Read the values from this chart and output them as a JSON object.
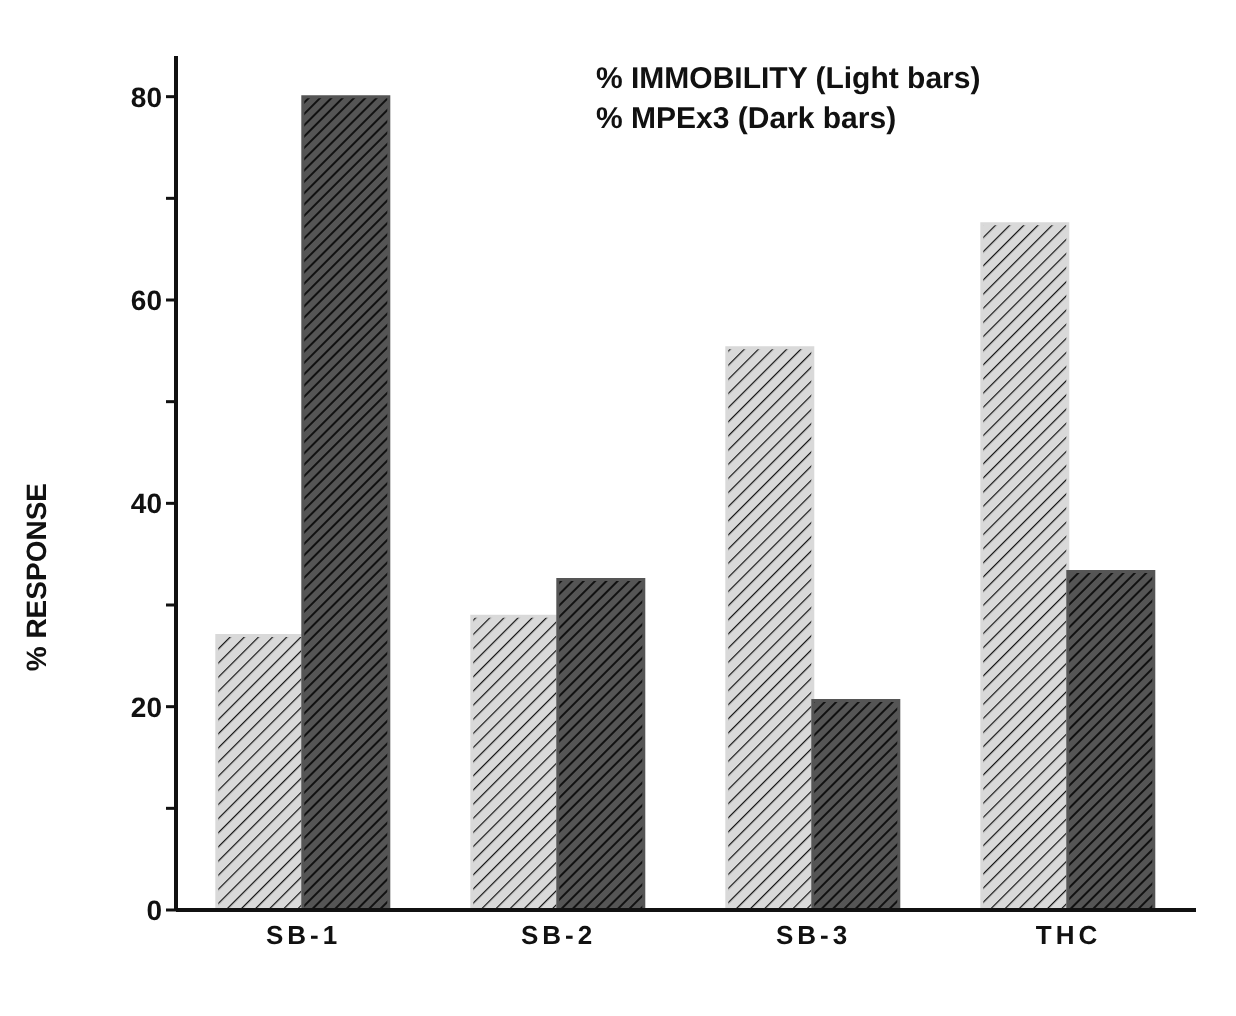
{
  "chart_data": {
    "type": "bar",
    "ylabel": "% RESPONSE",
    "categories": [
      "SB-1",
      "SB-2",
      "SB-3",
      "THC"
    ],
    "series": [
      {
        "color": "#d9d9d9",
        "values": [
          27,
          28.9,
          55.3,
          67.5
        ]
      },
      {
        "color": "#555555",
        "values": [
          80,
          32.5,
          20.6,
          33.3
        ]
      }
    ],
    "ylim": [
      0,
      84
    ],
    "yticks": [
      0,
      {
        "value": 10,
        "label": null
      },
      20,
      {
        "value": 30,
        "label": null
      },
      40,
      {
        "value": 50,
        "label": null
      },
      60,
      {
        "value": 70,
        "label": null
      },
      80
    ],
    "annotations": [
      "% IMMOBILITY (Light bars)",
      "% MPEx3 (Dark bars)"
    ],
    "grid": false,
    "legend": false
  }
}
